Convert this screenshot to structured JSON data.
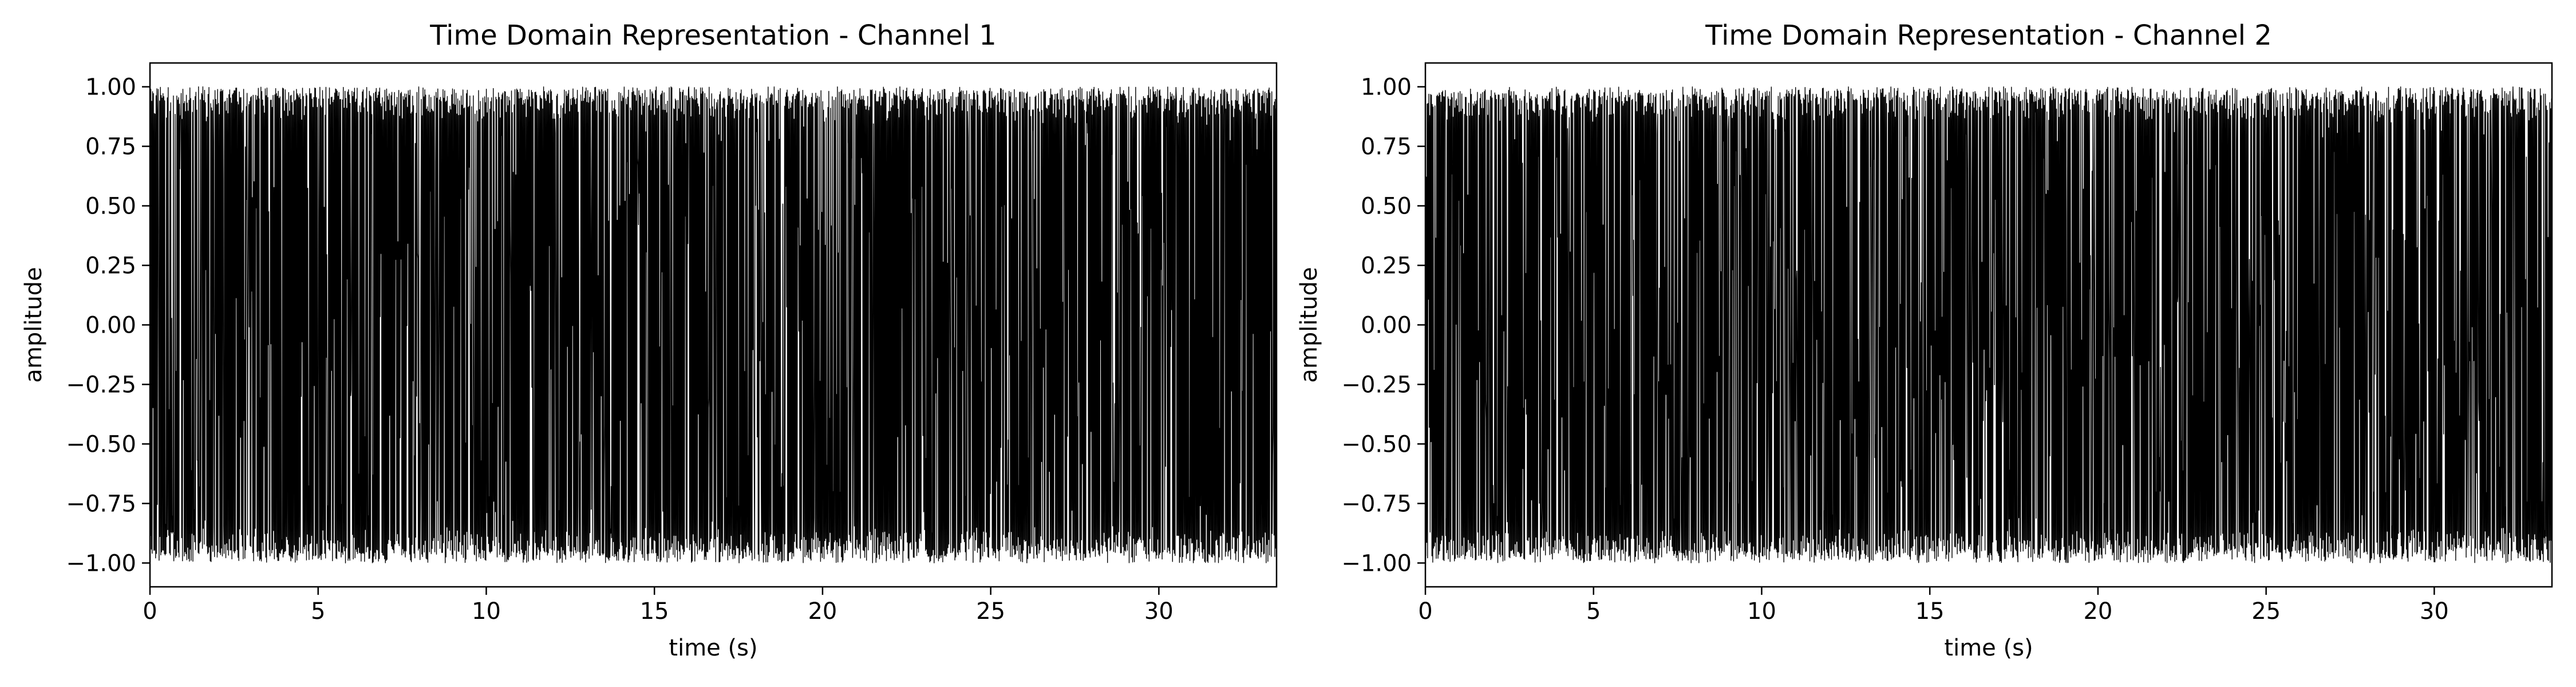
{
  "chart_data": [
    {
      "type": "line",
      "title": "Time Domain Representation - Channel 1",
      "xlabel": "time (s)",
      "ylabel": "amplitude",
      "xlim": [
        0,
        33.5
      ],
      "ylim": [
        -1.1,
        1.1
      ],
      "xticks": [
        0,
        5,
        10,
        15,
        20,
        25,
        30
      ],
      "xtick_labels": [
        "0",
        "5",
        "10",
        "15",
        "20",
        "25",
        "30"
      ],
      "yticks": [
        1.0,
        0.75,
        0.5,
        0.25,
        0.0,
        -0.25,
        -0.5,
        -0.75,
        -1.0
      ],
      "ytick_labels": [
        "1.00",
        "0.75",
        "0.50",
        "0.25",
        "0.00",
        "−0.25",
        "−0.50",
        "−0.75",
        "−1.00"
      ],
      "grid": false,
      "line_color": "#000000",
      "series": [
        {
          "duration_s": 33.5,
          "amplitude_range": [
            -1.0,
            1.0
          ],
          "description_values": "dense audio waveform spanning approximately -1.0 to 1.0 across the full time range"
        }
      ]
    },
    {
      "type": "line",
      "title": "Time Domain Representation - Channel 2",
      "xlabel": "time (s)",
      "ylabel": "amplitude",
      "xlim": [
        0,
        33.5
      ],
      "ylim": [
        -1.1,
        1.1
      ],
      "xticks": [
        0,
        5,
        10,
        15,
        20,
        25,
        30
      ],
      "xtick_labels": [
        "0",
        "5",
        "10",
        "15",
        "20",
        "25",
        "30"
      ],
      "yticks": [
        1.0,
        0.75,
        0.5,
        0.25,
        0.0,
        -0.25,
        -0.5,
        -0.75,
        -1.0
      ],
      "ytick_labels": [
        "1.00",
        "0.75",
        "0.50",
        "0.25",
        "0.00",
        "−0.25",
        "−0.50",
        "−0.75",
        "−1.00"
      ],
      "grid": false,
      "line_color": "#000000",
      "series": [
        {
          "duration_s": 33.5,
          "amplitude_range": [
            -1.0,
            1.0
          ]
        }
      ]
    }
  ]
}
